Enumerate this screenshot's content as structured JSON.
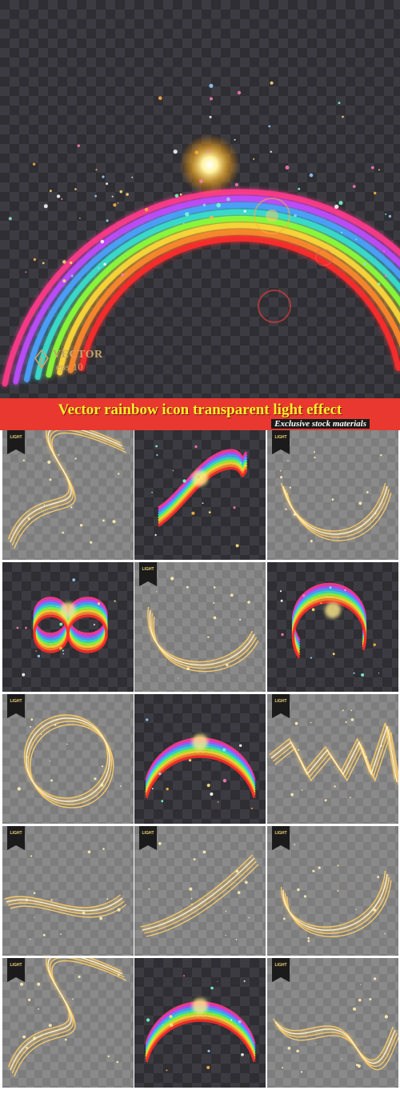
{
  "hero": {
    "badge_line1": "VECTOR",
    "badge_line2": "eps 10",
    "rainbow_colors": [
      "#ff3b8b",
      "#c04cff",
      "#4aa3ff",
      "#38e0d0",
      "#8cff3a",
      "#ffd93a",
      "#ff8a2a",
      "#ff2a2a"
    ]
  },
  "banner": {
    "title": "Vector rainbow icon transparent light effect",
    "subtitle": "Exclusive stock materials",
    "bg_color": "#e8382f",
    "title_color": "#ffee2a"
  },
  "tiles": [
    {
      "kind": "gold",
      "shape": "wave-s",
      "bg": "light",
      "ribbon": "LIGHT"
    },
    {
      "kind": "rainbow",
      "shape": "rainbow-wave",
      "bg": "dark",
      "ribbon": ""
    },
    {
      "kind": "gold",
      "shape": "arc-bottom",
      "bg": "light",
      "ribbon": "LIGHT"
    },
    {
      "kind": "rainbow",
      "shape": "infinity",
      "bg": "dark",
      "ribbon": ""
    },
    {
      "kind": "gold",
      "shape": "swoosh",
      "bg": "light",
      "ribbon": "LIGHT"
    },
    {
      "kind": "rainbow",
      "shape": "circle-arc",
      "bg": "dark",
      "ribbon": ""
    },
    {
      "kind": "gold",
      "shape": "ring",
      "bg": "light",
      "ribbon": "LIGHT"
    },
    {
      "kind": "rainbow",
      "shape": "arch",
      "bg": "dark",
      "ribbon": ""
    },
    {
      "kind": "gold",
      "shape": "zigzag",
      "bg": "light",
      "ribbon": "LIGHT"
    },
    {
      "kind": "gold",
      "shape": "flat-swoosh",
      "bg": "light",
      "ribbon": "LIGHT"
    },
    {
      "kind": "gold",
      "shape": "diagonal",
      "bg": "light",
      "ribbon": "LIGHT"
    },
    {
      "kind": "gold",
      "shape": "bowl",
      "bg": "light",
      "ribbon": "LIGHT"
    },
    {
      "kind": "gold",
      "shape": "wave-s",
      "bg": "light",
      "ribbon": "LIGHT"
    },
    {
      "kind": "rainbow",
      "shape": "arch",
      "bg": "dark",
      "ribbon": ""
    },
    {
      "kind": "gold",
      "shape": "wave-flat",
      "bg": "light",
      "ribbon": "LIGHT"
    }
  ]
}
